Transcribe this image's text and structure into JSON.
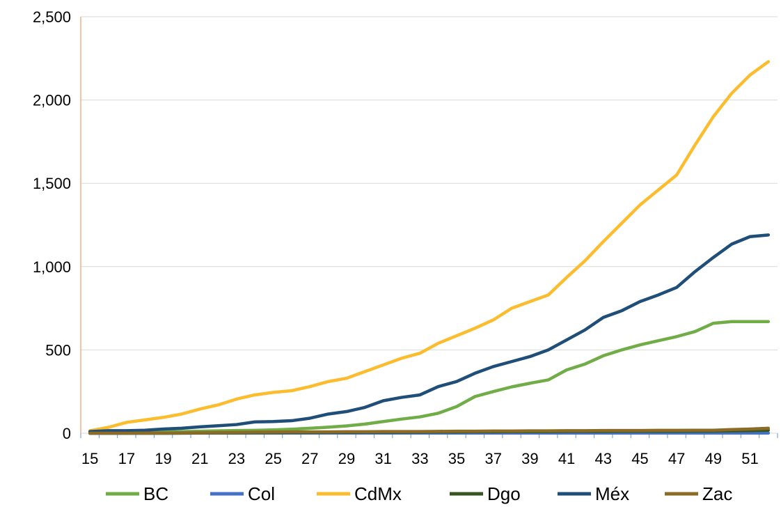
{
  "chart_data": {
    "type": "line",
    "title": "",
    "xlabel": "",
    "ylabel": "",
    "x": [
      15,
      16,
      17,
      18,
      19,
      20,
      21,
      22,
      23,
      24,
      25,
      26,
      27,
      28,
      29,
      30,
      31,
      32,
      33,
      34,
      35,
      36,
      37,
      38,
      39,
      40,
      41,
      42,
      43,
      44,
      45,
      46,
      47,
      48,
      49,
      50,
      51,
      52
    ],
    "x_tick_labels": [
      "15",
      "17",
      "19",
      "21",
      "23",
      "25",
      "27",
      "29",
      "31",
      "33",
      "35",
      "37",
      "39",
      "41",
      "43",
      "45",
      "47",
      "49",
      "51"
    ],
    "ylim": [
      0,
      2500
    ],
    "y_tick_labels": [
      "0",
      "500",
      "1,000",
      "1,500",
      "2,000",
      "2,500"
    ],
    "grid": "horizontal",
    "legend_position": "bottom",
    "series": [
      {
        "name": "BC",
        "color": "#70ad47",
        "values": [
          5,
          6,
          8,
          9,
          9,
          10,
          12,
          14,
          16,
          17,
          20,
          24,
          30,
          36,
          44,
          55,
          70,
          85,
          98,
          120,
          160,
          220,
          250,
          278,
          300,
          320,
          380,
          415,
          465,
          500,
          530,
          555,
          580,
          610,
          660,
          670,
          670,
          670
        ]
      },
      {
        "name": "Col",
        "color": "#4472c4",
        "values": [
          0,
          0,
          0,
          0,
          0,
          0,
          1,
          1,
          1,
          1,
          1,
          1,
          1,
          1,
          1,
          1,
          1,
          1,
          1,
          1,
          1,
          1,
          1,
          1,
          1,
          1,
          1,
          1,
          1,
          1,
          1,
          1,
          1,
          1,
          1,
          1,
          1,
          1
        ]
      },
      {
        "name": "CdMx",
        "color": "#fbbc2d",
        "values": [
          15,
          35,
          65,
          80,
          95,
          115,
          145,
          170,
          205,
          230,
          245,
          255,
          280,
          310,
          330,
          370,
          410,
          450,
          480,
          540,
          585,
          630,
          680,
          750,
          790,
          830,
          935,
          1035,
          1150,
          1260,
          1370,
          1460,
          1550,
          1730,
          1900,
          2040,
          2150,
          2230
        ]
      },
      {
        "name": "Dgo",
        "color": "#375623",
        "values": [
          0,
          0,
          0,
          0,
          0,
          1,
          1,
          2,
          2,
          3,
          3,
          4,
          4,
          5,
          5,
          6,
          6,
          6,
          7,
          8,
          8,
          9,
          9,
          10,
          10,
          10,
          11,
          11,
          11,
          12,
          12,
          12,
          12,
          13,
          13,
          14,
          15,
          18
        ]
      },
      {
        "name": "Méx",
        "color": "#1f4e79",
        "values": [
          10,
          15,
          15,
          18,
          25,
          30,
          38,
          45,
          52,
          68,
          70,
          75,
          90,
          115,
          130,
          155,
          195,
          215,
          230,
          280,
          310,
          360,
          400,
          430,
          460,
          500,
          560,
          620,
          695,
          735,
          790,
          830,
          875,
          970,
          1055,
          1135,
          1180,
          1190
        ]
      },
      {
        "name": "Zac",
        "color": "#8b6b25",
        "values": [
          0,
          0,
          0,
          1,
          1,
          2,
          3,
          4,
          5,
          6,
          7,
          8,
          8,
          8,
          9,
          9,
          10,
          10,
          10,
          11,
          12,
          12,
          13,
          13,
          14,
          14,
          15,
          15,
          16,
          16,
          16,
          17,
          17,
          18,
          18,
          22,
          25,
          30
        ]
      }
    ]
  }
}
